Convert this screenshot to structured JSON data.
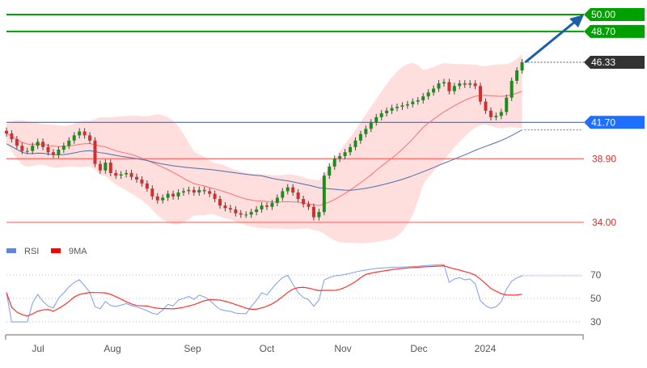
{
  "chart_data": [
    {
      "type": "candlestick",
      "ylim": [
        34.0,
        50.0
      ],
      "grid": false,
      "closes": [
        40.85,
        40.4,
        39.9,
        39.5,
        39.5,
        39.9,
        40.2,
        39.8,
        39.4,
        39.2,
        39.6,
        39.9,
        40.3,
        40.7,
        41.0,
        40.7,
        40.3,
        38.5,
        38.0,
        38.6,
        37.8,
        37.6,
        37.7,
        37.8,
        37.5,
        37.3,
        37.0,
        36.6,
        36.0,
        35.7,
        35.9,
        36.2,
        36.0,
        36.3,
        36.4,
        36.5,
        36.3,
        36.5,
        36.4,
        36.2,
        35.8,
        35.3,
        35.1,
        35.0,
        34.7,
        34.6,
        34.6,
        34.8,
        35.0,
        35.3,
        35.2,
        35.5,
        35.9,
        36.4,
        36.7,
        36.3,
        35.8,
        35.4,
        35.2,
        34.4,
        34.8,
        37.6,
        38.3,
        38.9,
        39.1,
        39.4,
        39.8,
        40.3,
        40.8,
        41.2,
        41.7,
        42.1,
        42.4,
        42.6,
        42.8,
        42.9,
        43.0,
        43.1,
        43.3,
        43.4,
        43.7,
        44.0,
        44.3,
        44.7,
        44.8,
        44.1,
        44.5,
        44.7,
        44.6,
        44.7,
        44.5,
        43.3,
        42.6,
        42.1,
        42.2,
        42.5,
        43.6,
        44.9,
        45.7,
        46.33
      ],
      "levels": [
        {
          "value": 50.0,
          "label": "50.00",
          "color": "#00a000"
        },
        {
          "value": 48.7,
          "label": "48.70",
          "color": "#00a000"
        },
        {
          "value": 41.7,
          "label": "41.70",
          "color": "#1e6fff"
        },
        {
          "value": 38.9,
          "label": "38.90",
          "color": "#ff6666"
        },
        {
          "value": 34.0,
          "label": "34.00",
          "color": "#ff6666"
        }
      ],
      "last_price": {
        "value": 46.33,
        "label": "46.33",
        "color": "#333333"
      },
      "target_arrow": {
        "from": 46.33,
        "to": 50.0,
        "color": "#1a5fa8"
      },
      "colors": {
        "up": "#1a8f1a",
        "down": "#d03030",
        "ma_short": "#ff7070",
        "ma_long": "#4a6fb0",
        "band": "#ffd6d6"
      }
    },
    {
      "type": "line",
      "legend": [
        {
          "name": "RSI",
          "color": "#5b86e5"
        },
        {
          "name": "9MA",
          "color": "#ff0000"
        }
      ],
      "legend_position": "top-left",
      "ylim": [
        20,
        85
      ],
      "y_ticks": [
        "70",
        "50",
        "30"
      ],
      "y_tick_values": [
        70,
        50,
        30
      ],
      "x_ticks": [
        "Jul",
        "Aug",
        "Sep",
        "Oct",
        "Nov",
        "Dec",
        "2024"
      ]
    }
  ]
}
